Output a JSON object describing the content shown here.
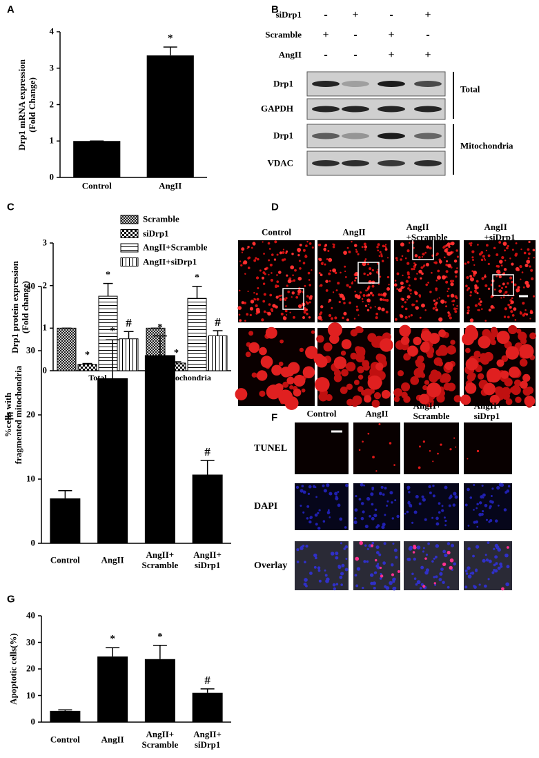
{
  "chart_data": [
    {
      "panel": "A",
      "type": "bar",
      "ylabel": "Drp1 mRNA expression\n(Fold Change)",
      "categories": [
        "Control",
        "AngII"
      ],
      "values": [
        1,
        3.35
      ],
      "errors": [
        0,
        0.23
      ],
      "annotations": [
        null,
        "*"
      ],
      "color": "#000000",
      "ylim": [
        0,
        4
      ],
      "yticks": [
        0,
        1,
        2,
        3,
        4
      ]
    },
    {
      "panel": "C",
      "type": "grouped-bar",
      "ylabel": "Drp1 protein expression\n(Fold change)",
      "categories": [
        "Total",
        "Mitochondria"
      ],
      "series": [
        {
          "name": "Scramble",
          "pattern": "crosshatch",
          "values": [
            1,
            1
          ],
          "errors": [
            0,
            0
          ],
          "annotations": [
            null,
            null
          ]
        },
        {
          "name": "siDrp1",
          "pattern": "checker",
          "values": [
            0.15,
            0.18
          ],
          "errors": [
            0.02,
            0.03
          ],
          "annotations": [
            "*",
            "*"
          ]
        },
        {
          "name": "AngII+Scramble",
          "pattern": "horizontal",
          "values": [
            1.75,
            1.7
          ],
          "errors": [
            0.3,
            0.28
          ],
          "annotations": [
            "*",
            "*"
          ]
        },
        {
          "name": "AngII+siDrp1",
          "pattern": "vertical",
          "values": [
            0.75,
            0.82
          ],
          "errors": [
            0.17,
            0.12
          ],
          "annotations": [
            "#",
            "#"
          ]
        }
      ],
      "legend": "top-right",
      "ylim": [
        0,
        3
      ],
      "yticks": [
        0,
        1,
        2,
        3
      ]
    },
    {
      "panel": "E",
      "type": "bar",
      "ylabel": "%cells with\nfragmented mitochondria",
      "categories": [
        "Control",
        "AngII",
        "AngII+\nScramble",
        "AngII+\nsiDrp1"
      ],
      "values": [
        7,
        25.7,
        29.3,
        10.7
      ],
      "errors": [
        1.2,
        6,
        3,
        2.2
      ],
      "annotations": [
        null,
        "*",
        "*",
        "#"
      ],
      "color": "#000000",
      "ylim": [
        0,
        40
      ],
      "yticks": [
        0,
        10,
        20,
        30,
        40
      ]
    },
    {
      "panel": "G",
      "type": "bar",
      "ylabel": "Apoptotic cells(%)",
      "categories": [
        "Control",
        "AngII",
        "AngII+\nScramble",
        "AngII+\nsiDrp1"
      ],
      "values": [
        4.2,
        24.7,
        23.7,
        11
      ],
      "errors": [
        0.4,
        3.3,
        5.2,
        1.5
      ],
      "annotations": [
        null,
        "*",
        "*",
        "#"
      ],
      "color": "#000000",
      "ylim": [
        0,
        40
      ],
      "yticks": [
        0,
        10,
        20,
        30,
        40
      ]
    }
  ],
  "blot": {
    "panel": "B",
    "treatments": [
      {
        "label": "siDrp1",
        "signs": [
          "-",
          "+",
          "-",
          "+"
        ]
      },
      {
        "label": "Scramble",
        "signs": [
          "+",
          "-",
          "+",
          "-"
        ]
      },
      {
        "label": "AngII",
        "signs": [
          "-",
          "-",
          "+",
          "+"
        ]
      }
    ],
    "bands": [
      "Drp1",
      "GAPDH",
      "Drp1",
      "VDAC"
    ],
    "groups": [
      "Total",
      "Mitochondria"
    ]
  },
  "microscopy": {
    "panel": "D",
    "columns": [
      "Control",
      "AngII",
      "AngII\n+Scramble",
      "AngII\n+siDrp1"
    ]
  },
  "tunel": {
    "panel": "F",
    "columns": [
      "Control",
      "AngII",
      "AngII+\nScramble",
      "AngII+\nsiDrp1"
    ],
    "rows": [
      "TUNEL",
      "DAPI",
      "Overlay"
    ]
  }
}
